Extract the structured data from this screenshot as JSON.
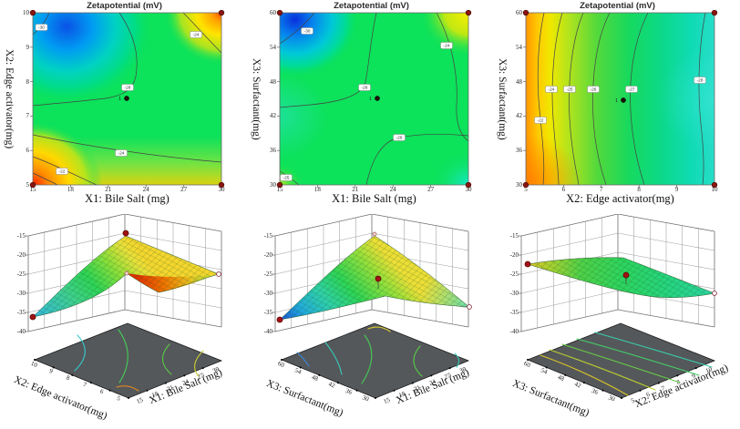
{
  "figure": {
    "response_title": "Zetapotential (mV)",
    "colormap_low_to_high": [
      "#0a30dc",
      "#00a8f0",
      "#00d8c0",
      "#0ce25a",
      "#b4e41e",
      "#ffd800",
      "#ff8a00",
      "#ff1e00"
    ],
    "design_point_color": "#8b1510",
    "floor_color": "#55585b"
  },
  "chart_data": [
    {
      "type": "heatmap",
      "subtype": "contour-2d",
      "title": "Zetapotential (mV)",
      "xlabel": "X1: Bile Salt (mg)",
      "ylabel": "X2: Edge activator(mg)",
      "xlim": [
        15,
        30
      ],
      "ylim": [
        5,
        10
      ],
      "x_ticks": [
        "15",
        "18",
        "21",
        "24",
        "27",
        "30"
      ],
      "y_ticks": [
        "10",
        "9",
        "8",
        "7",
        "6",
        "5"
      ],
      "z_range_est": [
        -40,
        -15
      ],
      "contour_labels": [
        "-30",
        "-24",
        "-28",
        "-24",
        "-22"
      ],
      "corner_values_est": {
        "top_left": -33,
        "top_right": -21,
        "bottom_left": -19,
        "bottom_right": -26
      },
      "center_point": {
        "x": 22.5,
        "y": 7.5,
        "runs": "1"
      },
      "grid": false,
      "corner_markers": 4
    },
    {
      "type": "heatmap",
      "subtype": "contour-2d",
      "title": "Zetapotential (mV)",
      "xlabel": "X1: Bile Salt (mg)",
      "ylabel": "X3: Surfactant(mg)",
      "xlim": [
        15,
        30
      ],
      "ylim": [
        30,
        60
      ],
      "x_ticks": [
        "15",
        "18",
        "21",
        "24",
        "27",
        "30"
      ],
      "y_ticks": [
        "60",
        "54",
        "48",
        "42",
        "36",
        "30"
      ],
      "z_range_est": [
        -40,
        -15
      ],
      "contour_labels": [
        "-30",
        "-24",
        "-28",
        "-26",
        "-25"
      ],
      "corner_values_est": {
        "top_left": -33,
        "top_right": -21,
        "bottom_left": -26,
        "bottom_right": -30
      },
      "center_point": {
        "x": 22.5,
        "y": 45,
        "runs": "1"
      },
      "grid": false,
      "corner_markers": 4
    },
    {
      "type": "heatmap",
      "subtype": "contour-2d",
      "title": "Zetapotential (mV)",
      "xlabel": "X2: Edge activator(mg)",
      "ylabel": "X3: Surfactant(mg)",
      "xlim": [
        5,
        10
      ],
      "ylim": [
        30,
        60
      ],
      "x_ticks": [
        "5",
        "6",
        "7",
        "8",
        "9",
        "10"
      ],
      "y_ticks": [
        "60",
        "54",
        "48",
        "42",
        "36",
        "30"
      ],
      "z_range_est": [
        -40,
        -15
      ],
      "contour_labels": [
        "-22",
        "-24",
        "-25",
        "-26",
        "-27",
        "-28"
      ],
      "corner_values_est": {
        "top_left": -21,
        "top_right": -29,
        "bottom_left": -22,
        "bottom_right": -30
      },
      "center_point": {
        "x": 7.5,
        "y": 45,
        "runs": "1"
      },
      "grid": false,
      "corner_markers": 4
    },
    {
      "type": "surface3d",
      "response": "Zetapotential (mV)",
      "z_ticks": [
        "-15",
        "-20",
        "-25",
        "-30",
        "-35",
        "-40"
      ],
      "zlim": [
        -40,
        -15
      ],
      "y_axis": {
        "label": "X2: Edge activator(mg)",
        "ticks": [
          "10",
          "9",
          "8",
          "7",
          "6",
          "5"
        ]
      },
      "x_axis": {
        "label": "X1: Bile Salt (mg)",
        "ticks": [
          "15",
          "18",
          "21",
          "24",
          "27",
          "30"
        ]
      },
      "surface_corners_est": {
        "left": -37,
        "back": -16,
        "right": -26,
        "front": -20
      },
      "markers": {
        "left_corner": "filled-red",
        "apex": "filled-red",
        "right_corner": "open",
        "fold": "light"
      }
    },
    {
      "type": "surface3d",
      "response": "Zetapotential (mV)",
      "z_ticks": [
        "-15",
        "-20",
        "-25",
        "-30",
        "-35",
        "-40"
      ],
      "zlim": [
        -40,
        -15
      ],
      "y_axis": {
        "label": "X3: Surfactant(mg)",
        "ticks": [
          "60",
          "54",
          "48",
          "42",
          "36",
          "30"
        ]
      },
      "x_axis": {
        "label": "X1: Bile Salt (mg)",
        "ticks": [
          "15",
          "18",
          "21",
          "24",
          "27",
          "30"
        ]
      },
      "surface_corners_est": {
        "left": -38,
        "back": -16,
        "right": -34,
        "front": -28
      },
      "markers": {
        "left_corner": "filled-red",
        "apex": "light",
        "right_corner": "open",
        "center_above_surface": "filled-red"
      }
    },
    {
      "type": "surface3d",
      "response": "Zetapotential (mV)",
      "z_ticks": [
        "-15",
        "-20",
        "-25",
        "-30",
        "-35",
        "-40"
      ],
      "zlim": [
        -40,
        -15
      ],
      "y_axis": {
        "label": "X3: Surfactant(mg)",
        "ticks": [
          "60",
          "54",
          "48",
          "42",
          "36",
          "30"
        ]
      },
      "x_axis": {
        "label": "X2: Edge activator(mg)",
        "ticks": [
          "5",
          "6",
          "7",
          "8",
          "9",
          "10"
        ]
      },
      "surface_corners_est": {
        "left": -23,
        "back": -22,
        "right": -31,
        "front": -29
      },
      "markers": {
        "left_corner": "filled-red",
        "right_corner": "open",
        "center_above_surface": "filled-red"
      }
    }
  ]
}
